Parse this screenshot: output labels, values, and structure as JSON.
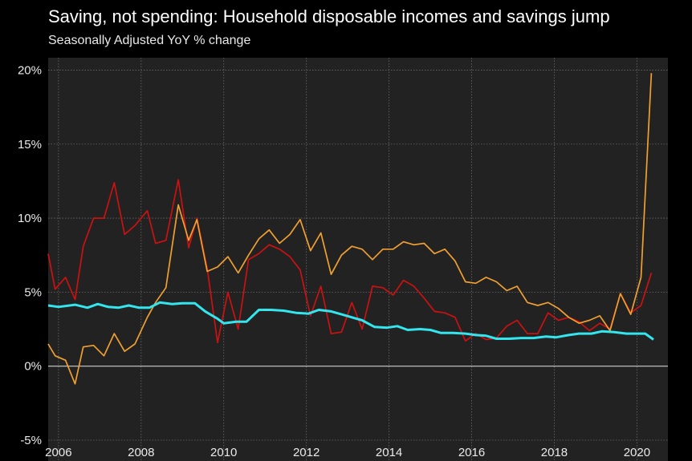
{
  "chart_data": {
    "type": "line",
    "title": "Saving, not spending: Household disposable incomes and savings jump",
    "subtitle": "Seasonally Adjusted YoY % change",
    "xlabel": "",
    "ylabel": "",
    "xlim": [
      2005.75,
      2020.75
    ],
    "ylim": [
      -5,
      21
    ],
    "x_ticks": [
      2006,
      2008,
      2010,
      2012,
      2014,
      2016,
      2018,
      2020
    ],
    "x_tick_labels": [
      "2006",
      "2008",
      "2010",
      "2012",
      "2014",
      "2016",
      "2018",
      "2020"
    ],
    "y_ticks": [
      -5,
      0,
      5,
      10,
      15,
      20
    ],
    "y_tick_labels": [
      "-5%",
      "0%",
      "5%",
      "10%",
      "15%",
      "20%"
    ],
    "grid": true,
    "legend": "none",
    "series": [
      {
        "color": "#cc1111",
        "points": [
          [
            2005.75,
            7.6
          ],
          [
            2005.92,
            5.2
          ],
          [
            2006.17,
            6.0
          ],
          [
            2006.4,
            4.5
          ],
          [
            2006.6,
            8.1
          ],
          [
            2006.85,
            10.0
          ],
          [
            2007.1,
            10.0
          ],
          [
            2007.35,
            12.4
          ],
          [
            2007.6,
            8.9
          ],
          [
            2007.85,
            9.5
          ],
          [
            2008.15,
            10.5
          ],
          [
            2008.35,
            8.3
          ],
          [
            2008.6,
            8.5
          ],
          [
            2008.9,
            12.6
          ],
          [
            2009.15,
            8.0
          ],
          [
            2009.35,
            10.0
          ],
          [
            2009.6,
            6.6
          ],
          [
            2009.85,
            1.6
          ],
          [
            2010.1,
            5.0
          ],
          [
            2010.35,
            2.5
          ],
          [
            2010.6,
            7.2
          ],
          [
            2010.85,
            7.6
          ],
          [
            2011.1,
            8.2
          ],
          [
            2011.35,
            7.9
          ],
          [
            2011.6,
            7.4
          ],
          [
            2011.85,
            6.5
          ],
          [
            2012.1,
            3.4
          ],
          [
            2012.35,
            5.4
          ],
          [
            2012.6,
            2.2
          ],
          [
            2012.85,
            2.3
          ],
          [
            2013.1,
            4.3
          ],
          [
            2013.35,
            2.5
          ],
          [
            2013.6,
            5.4
          ],
          [
            2013.85,
            5.3
          ],
          [
            2014.1,
            4.8
          ],
          [
            2014.35,
            5.8
          ],
          [
            2014.6,
            5.4
          ],
          [
            2014.85,
            4.6
          ],
          [
            2015.1,
            3.7
          ],
          [
            2015.35,
            3.6
          ],
          [
            2015.6,
            3.3
          ],
          [
            2015.85,
            1.7
          ],
          [
            2016.1,
            2.2
          ],
          [
            2016.35,
            1.8
          ],
          [
            2016.6,
            1.9
          ],
          [
            2016.85,
            2.7
          ],
          [
            2017.1,
            3.1
          ],
          [
            2017.35,
            2.2
          ],
          [
            2017.6,
            2.2
          ],
          [
            2017.85,
            3.6
          ],
          [
            2018.1,
            3.1
          ],
          [
            2018.35,
            3.3
          ],
          [
            2018.6,
            3.0
          ],
          [
            2018.85,
            2.4
          ],
          [
            2019.1,
            2.9
          ],
          [
            2019.35,
            2.5
          ],
          [
            2019.6,
            4.9
          ],
          [
            2019.85,
            3.6
          ],
          [
            2020.1,
            4.1
          ],
          [
            2020.35,
            6.3
          ]
        ]
      },
      {
        "color": "#f0a030",
        "points": [
          [
            2005.75,
            1.5
          ],
          [
            2005.92,
            0.7
          ],
          [
            2006.17,
            0.4
          ],
          [
            2006.4,
            -1.2
          ],
          [
            2006.6,
            1.3
          ],
          [
            2006.85,
            1.4
          ],
          [
            2007.1,
            0.7
          ],
          [
            2007.35,
            2.2
          ],
          [
            2007.6,
            1.0
          ],
          [
            2007.85,
            1.5
          ],
          [
            2008.15,
            3.3
          ],
          [
            2008.35,
            4.3
          ],
          [
            2008.6,
            5.3
          ],
          [
            2008.9,
            10.9
          ],
          [
            2009.15,
            8.5
          ],
          [
            2009.35,
            9.9
          ],
          [
            2009.6,
            6.4
          ],
          [
            2009.85,
            6.7
          ],
          [
            2010.1,
            7.4
          ],
          [
            2010.35,
            6.3
          ],
          [
            2010.6,
            7.5
          ],
          [
            2010.85,
            8.6
          ],
          [
            2011.1,
            9.2
          ],
          [
            2011.35,
            8.3
          ],
          [
            2011.6,
            8.9
          ],
          [
            2011.85,
            9.9
          ],
          [
            2012.1,
            7.8
          ],
          [
            2012.35,
            9.0
          ],
          [
            2012.6,
            6.2
          ],
          [
            2012.85,
            7.5
          ],
          [
            2013.1,
            8.1
          ],
          [
            2013.35,
            7.9
          ],
          [
            2013.6,
            7.2
          ],
          [
            2013.85,
            7.9
          ],
          [
            2014.1,
            7.9
          ],
          [
            2014.35,
            8.4
          ],
          [
            2014.6,
            8.2
          ],
          [
            2014.85,
            8.3
          ],
          [
            2015.1,
            7.6
          ],
          [
            2015.35,
            7.9
          ],
          [
            2015.6,
            7.1
          ],
          [
            2015.85,
            5.7
          ],
          [
            2016.1,
            5.6
          ],
          [
            2016.35,
            6.0
          ],
          [
            2016.6,
            5.7
          ],
          [
            2016.85,
            5.1
          ],
          [
            2017.1,
            5.4
          ],
          [
            2017.35,
            4.3
          ],
          [
            2017.6,
            4.1
          ],
          [
            2017.85,
            4.3
          ],
          [
            2018.1,
            3.9
          ],
          [
            2018.35,
            3.3
          ],
          [
            2018.6,
            2.9
          ],
          [
            2018.85,
            3.1
          ],
          [
            2019.1,
            3.4
          ],
          [
            2019.35,
            2.4
          ],
          [
            2019.6,
            4.9
          ],
          [
            2019.85,
            3.5
          ],
          [
            2020.1,
            6.0
          ],
          [
            2020.35,
            19.8
          ]
        ]
      },
      {
        "color": "#33e6ee",
        "points": [
          [
            2005.75,
            4.1
          ],
          [
            2006.0,
            4.0
          ],
          [
            2006.4,
            4.15
          ],
          [
            2006.7,
            3.95
          ],
          [
            2006.95,
            4.2
          ],
          [
            2007.2,
            4.0
          ],
          [
            2007.45,
            3.95
          ],
          [
            2007.7,
            4.1
          ],
          [
            2007.95,
            3.95
          ],
          [
            2008.2,
            3.95
          ],
          [
            2008.45,
            4.3
          ],
          [
            2008.75,
            4.2
          ],
          [
            2009.0,
            4.25
          ],
          [
            2009.3,
            4.25
          ],
          [
            2009.55,
            3.7
          ],
          [
            2009.85,
            3.2
          ],
          [
            2010.0,
            2.9
          ],
          [
            2010.3,
            3.0
          ],
          [
            2010.55,
            3.0
          ],
          [
            2010.85,
            3.8
          ],
          [
            2011.15,
            3.8
          ],
          [
            2011.45,
            3.75
          ],
          [
            2011.75,
            3.6
          ],
          [
            2012.05,
            3.55
          ],
          [
            2012.3,
            3.8
          ],
          [
            2012.6,
            3.7
          ],
          [
            2012.85,
            3.5
          ],
          [
            2013.1,
            3.3
          ],
          [
            2013.35,
            3.1
          ],
          [
            2013.65,
            2.65
          ],
          [
            2013.95,
            2.6
          ],
          [
            2014.2,
            2.7
          ],
          [
            2014.45,
            2.45
          ],
          [
            2014.75,
            2.5
          ],
          [
            2015.0,
            2.45
          ],
          [
            2015.25,
            2.25
          ],
          [
            2015.55,
            2.25
          ],
          [
            2015.85,
            2.2
          ],
          [
            2016.1,
            2.1
          ],
          [
            2016.35,
            2.05
          ],
          [
            2016.6,
            1.85
          ],
          [
            2016.9,
            1.85
          ],
          [
            2017.2,
            1.9
          ],
          [
            2017.5,
            1.9
          ],
          [
            2017.8,
            2.0
          ],
          [
            2018.05,
            1.95
          ],
          [
            2018.35,
            2.1
          ],
          [
            2018.6,
            2.2
          ],
          [
            2018.9,
            2.2
          ],
          [
            2019.15,
            2.35
          ],
          [
            2019.45,
            2.3
          ],
          [
            2019.75,
            2.2
          ],
          [
            2020.0,
            2.2
          ],
          [
            2020.2,
            2.2
          ],
          [
            2020.4,
            1.8
          ]
        ]
      }
    ]
  }
}
